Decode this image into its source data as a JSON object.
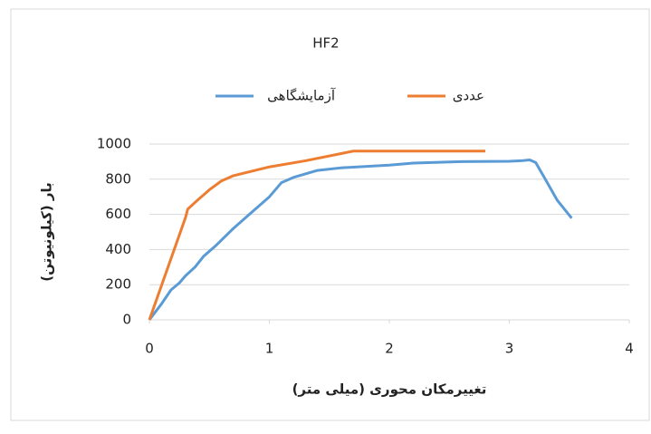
{
  "chart_data": {
    "type": "line",
    "title": "HF2",
    "x_label": "تغییرمکان محوری (میلی متر)",
    "y_label": "بار (کیلونیوتن)",
    "series": [
      {
        "name": "آزمایشگاهی",
        "color": "#5b9bd5",
        "x": [
          0,
          0.1,
          0.18,
          0.25,
          0.3,
          0.38,
          0.45,
          0.55,
          0.7,
          0.85,
          1.0,
          1.1,
          1.2,
          1.4,
          1.6,
          2.0,
          2.2,
          2.6,
          3.0,
          3.1,
          3.17,
          3.22,
          3.3,
          3.4,
          3.52
        ],
        "values": [
          0,
          90,
          170,
          210,
          250,
          300,
          360,
          420,
          520,
          610,
          700,
          780,
          810,
          850,
          865,
          880,
          892,
          900,
          902,
          905,
          910,
          895,
          800,
          680,
          578
        ]
      },
      {
        "name": "عددی",
        "color": "#ed7d31",
        "x": [
          0,
          0.3,
          0.32,
          0.4,
          0.5,
          0.6,
          0.7,
          0.85,
          1.0,
          1.3,
          1.7,
          2.0,
          2.8
        ],
        "values": [
          0,
          580,
          630,
          680,
          740,
          790,
          820,
          845,
          870,
          905,
          960,
          960,
          960
        ]
      }
    ],
    "xlim": [
      0,
      4
    ],
    "xticks": [
      0,
      1,
      2,
      3,
      4
    ],
    "ylim": [
      0,
      1000
    ],
    "yticks": [
      0,
      200,
      400,
      600,
      800,
      1000
    ],
    "grid": true
  }
}
